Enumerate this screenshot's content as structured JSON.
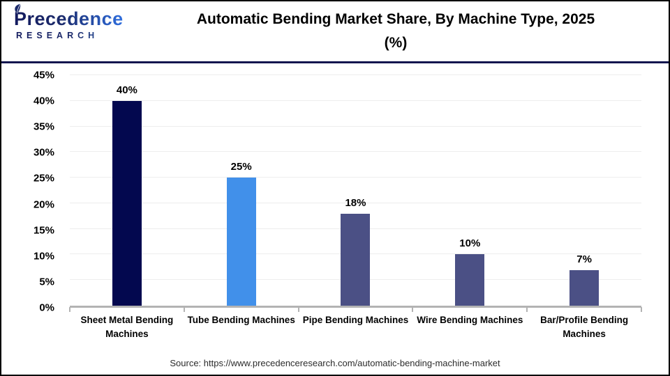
{
  "header": {
    "logo_line1": "Precedence",
    "logo_line2": "RESEARCH"
  },
  "chart_data": {
    "type": "bar",
    "title": "Automatic Bending Market Share, By Machine Type, 2025 (%)",
    "categories": [
      "Sheet Metal Bending Machines",
      "Tube Bending Machines",
      "Pipe Bending Machines",
      "Wire Bending Machines",
      "Bar/Profile Bending Machines"
    ],
    "values": [
      40,
      25,
      18,
      10,
      7
    ],
    "value_labels": [
      "40%",
      "25%",
      "18%",
      "10%",
      "7%"
    ],
    "bar_colors": [
      "#03084f",
      "#4190ea",
      "#4b5085",
      "#4b5085",
      "#4b5085"
    ],
    "xlabel": "",
    "ylabel": "",
    "ylim": [
      0,
      45
    ],
    "ytick_step": 5,
    "ytick_labels": [
      "0%",
      "5%",
      "10%",
      "15%",
      "20%",
      "25%",
      "30%",
      "35%",
      "40%",
      "45%"
    ],
    "grid": true,
    "legend": "none"
  },
  "footer": {
    "source": "Source: https://www.precedenceresearch.com/automatic-bending-machine-market"
  },
  "colors": {
    "bar_dark_navy": "#03084f",
    "bar_bright_blue": "#4190ea",
    "bar_slate": "#4b5085",
    "divider_navy": "#13164f",
    "axis_gray": "#b3b3b3",
    "gridline_gray": "#ededed",
    "logo_navy": "#1b2a6b",
    "logo_blue": "#3e8eea"
  }
}
